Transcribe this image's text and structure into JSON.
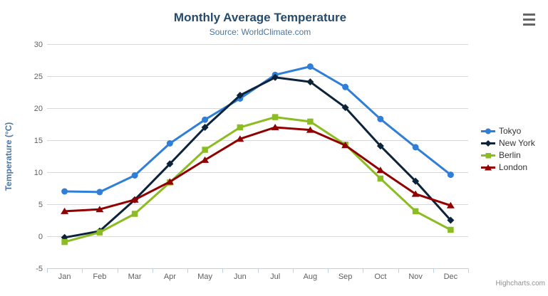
{
  "header": {
    "title": "Monthly Average Temperature",
    "subtitle": "Source: WorldClimate.com"
  },
  "credit": "Highcharts.com",
  "icons": {
    "context_menu": "hamburger-icon"
  },
  "chart_data": {
    "type": "line",
    "title": "Monthly Average Temperature",
    "subtitle": "Source: WorldClimate.com",
    "categories": [
      "Jan",
      "Feb",
      "Mar",
      "Apr",
      "May",
      "Jun",
      "Jul",
      "Aug",
      "Sep",
      "Oct",
      "Nov",
      "Dec"
    ],
    "series": [
      {
        "name": "Tokyo",
        "color": "#2f7ed8",
        "marker": "circle",
        "values": [
          7.0,
          6.9,
          9.5,
          14.5,
          18.2,
          21.5,
          25.2,
          26.5,
          23.3,
          18.3,
          13.9,
          9.6
        ]
      },
      {
        "name": "New York",
        "color": "#0d233a",
        "marker": "diamond",
        "values": [
          -0.2,
          0.8,
          5.7,
          11.3,
          17.0,
          22.0,
          24.8,
          24.1,
          20.1,
          14.1,
          8.6,
          2.5
        ]
      },
      {
        "name": "Berlin",
        "color": "#8bbc21",
        "marker": "square",
        "values": [
          -0.9,
          0.6,
          3.5,
          8.4,
          13.5,
          17.0,
          18.6,
          17.9,
          14.3,
          9.0,
          3.9,
          1.0
        ]
      },
      {
        "name": "London",
        "color": "#910000",
        "marker": "triangle",
        "values": [
          3.9,
          4.2,
          5.7,
          8.5,
          11.9,
          15.2,
          17.0,
          16.6,
          14.2,
          10.3,
          6.6,
          4.8
        ]
      }
    ],
    "xlabel": "",
    "ylabel": "Temperature (°C)",
    "ylim": [
      -5,
      30
    ],
    "yticks": [
      -5,
      0,
      5,
      10,
      15,
      20,
      25,
      30
    ],
    "grid": true,
    "legend_position": "right"
  }
}
